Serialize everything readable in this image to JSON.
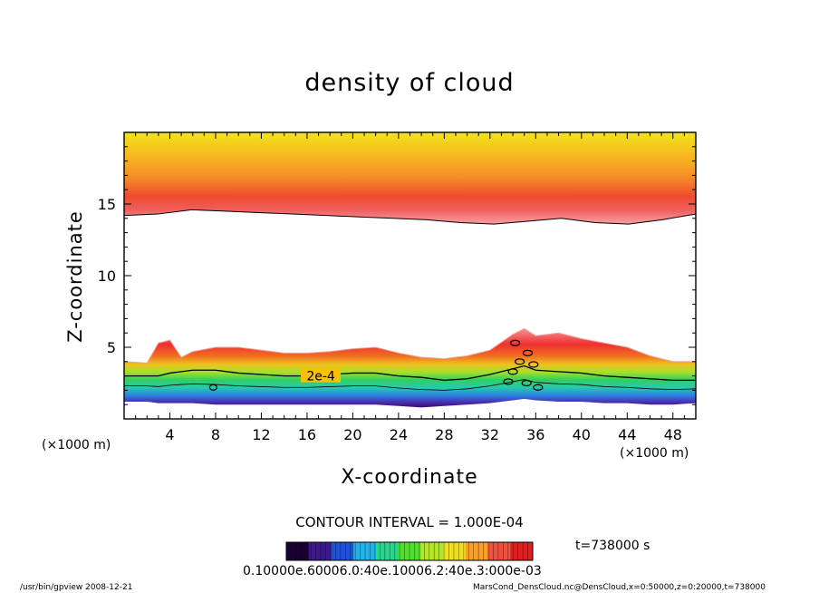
{
  "chart_data": {
    "type": "heatmap",
    "title": "density of cloud",
    "xlabel": "X-coordinate",
    "ylabel": "Z-coordinate",
    "x_unit": "(×1000 m)",
    "y_unit": "(×1000 m)",
    "xlim": [
      0,
      50
    ],
    "ylim": [
      0,
      20
    ],
    "x_ticks": [
      4,
      8,
      12,
      16,
      20,
      24,
      28,
      32,
      36,
      40,
      44,
      48
    ],
    "y_ticks": [
      5,
      10,
      15
    ],
    "contour_interval_text": "CONTOUR INTERVAL = 1.000E-04",
    "contour_label": "2e-4",
    "time_text": "t=738000 s",
    "colorbar_ticks_text": "0.10000e.60006.0:40e.10006.2:40e.3:000e-03",
    "colorbar_colors": [
      "#1a0033",
      "#3c1a8c",
      "#2050d8",
      "#22b4e8",
      "#2ad58c",
      "#52e030",
      "#b4e628",
      "#f0e020",
      "#f8a028",
      "#f05040",
      "#e02020"
    ],
    "upper_layer": {
      "description_units": "km",
      "top_z": 20,
      "bottom_z": [
        14.2,
        14.3,
        14.6,
        14.5,
        14.4,
        14.3,
        14.2,
        14.1,
        14.0,
        13.9,
        13.7,
        13.6,
        13.8,
        14.0,
        13.7,
        13.6,
        13.9,
        14.3
      ]
    },
    "lower_layer": {
      "x": [
        0,
        2,
        3,
        4,
        5,
        6,
        8,
        10,
        12,
        14,
        16,
        18,
        20,
        22,
        24,
        26,
        28,
        30,
        32,
        34,
        35,
        36,
        38,
        40,
        42,
        44,
        46,
        48,
        50
      ],
      "top_z": [
        4.0,
        3.9,
        5.3,
        5.5,
        4.3,
        4.7,
        5.0,
        5.0,
        4.8,
        4.6,
        4.6,
        4.7,
        4.9,
        5.0,
        4.6,
        4.3,
        4.2,
        4.4,
        4.8,
        5.9,
        6.3,
        5.8,
        6.0,
        5.6,
        5.3,
        5.0,
        4.4,
        4.0,
        4.0
      ],
      "contour_2e4_z": [
        3.0,
        3.0,
        3.0,
        3.2,
        3.3,
        3.4,
        3.4,
        3.2,
        3.1,
        3.0,
        3.0,
        3.1,
        3.2,
        3.2,
        3.0,
        2.9,
        2.7,
        2.8,
        3.1,
        3.5,
        3.7,
        3.4,
        3.3,
        3.2,
        3.0,
        2.9,
        2.8,
        2.7,
        2.7
      ],
      "bottom_z": [
        1.2,
        1.2,
        1.1,
        1.1,
        1.1,
        1.1,
        1.0,
        1.0,
        1.0,
        1.0,
        1.0,
        1.0,
        1.0,
        1.0,
        0.9,
        0.8,
        0.9,
        1.0,
        1.1,
        1.3,
        1.4,
        1.3,
        1.2,
        1.2,
        1.1,
        1.1,
        1.0,
        1.0,
        1.1
      ]
    }
  },
  "footer": {
    "left": "/usr/bin/gpview   2008-12-21",
    "right": "MarsCond_DensCloud.nc@DensCloud,x=0:50000,z=0:20000,t=738000"
  }
}
